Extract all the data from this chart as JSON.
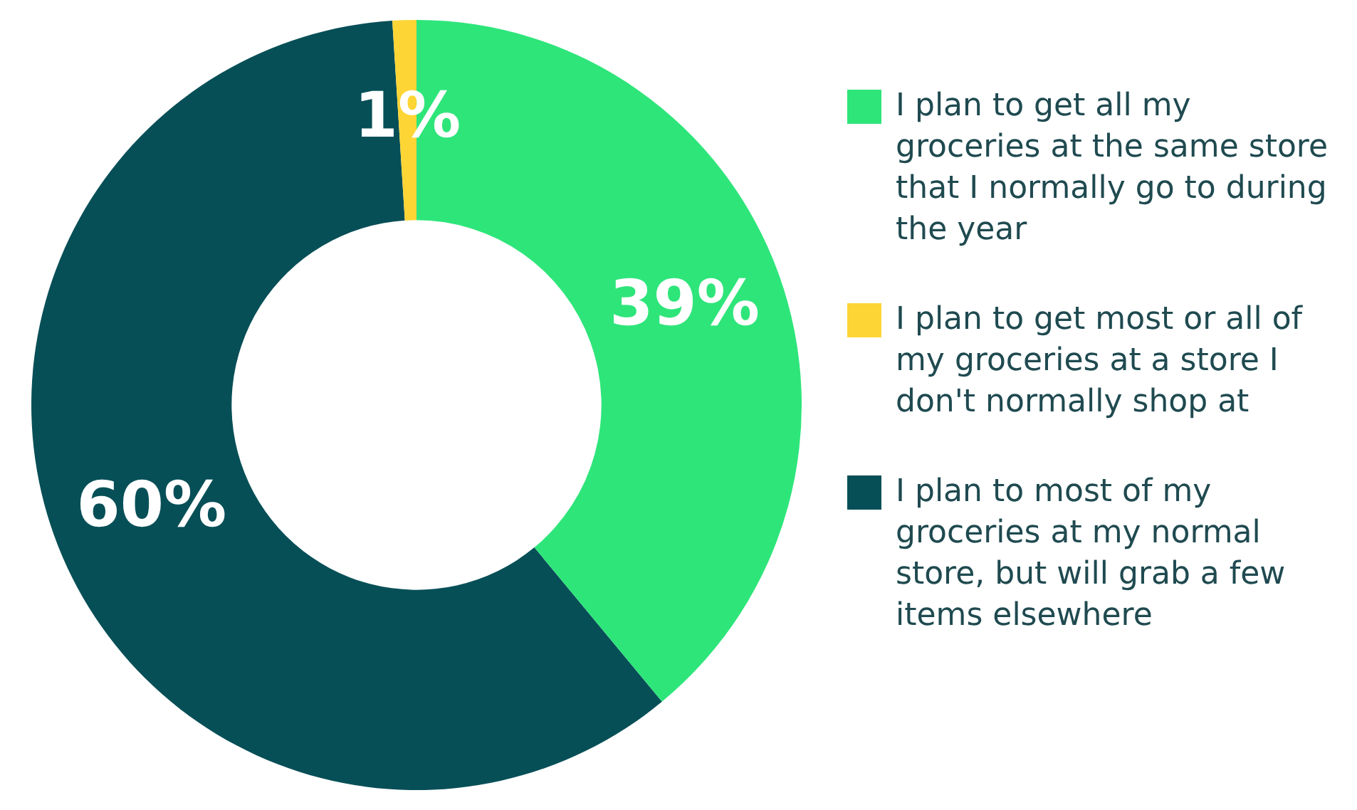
{
  "chart_data": {
    "type": "donut",
    "categories": [
      "I plan to get all my groceries at the same store that I normally go to during the year",
      "I plan to get most or all of my groceries at a store I don't normally shop at",
      "I plan to most of my groceries at my normal store, but will grab a few items elsewhere"
    ],
    "values": [
      39,
      1,
      60
    ],
    "colors": [
      "#2ee57a",
      "#fdd535",
      "#074f57"
    ],
    "value_labels": [
      "39%",
      "1%",
      "60%"
    ],
    "legend": "right"
  }
}
